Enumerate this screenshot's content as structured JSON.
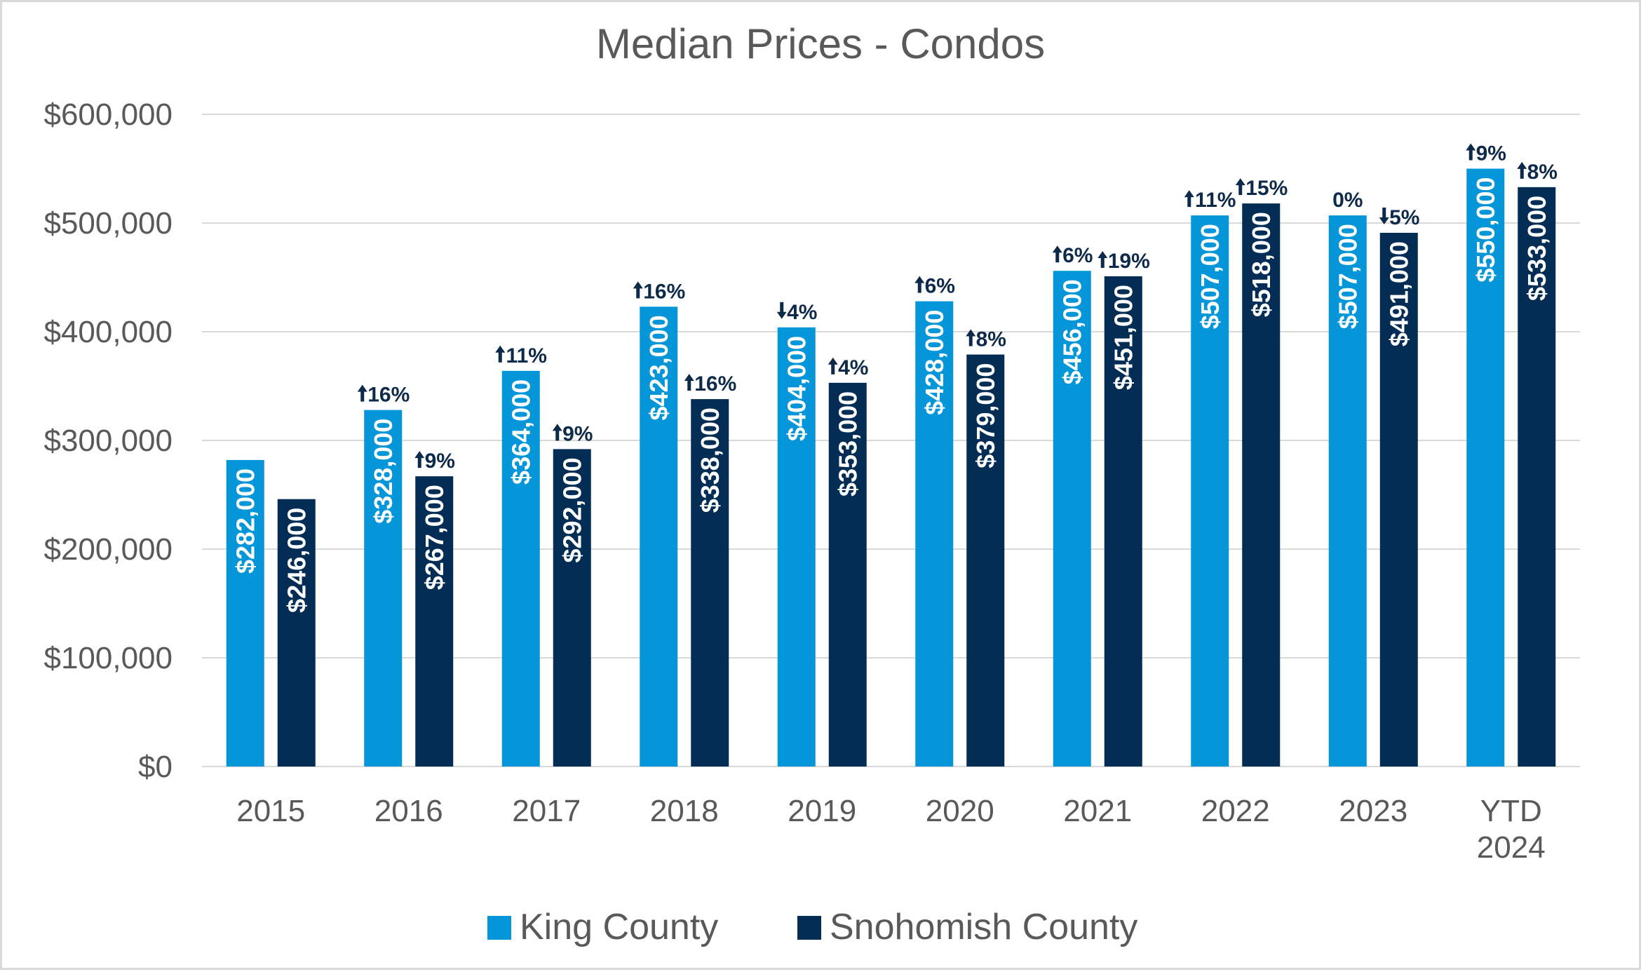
{
  "chart_data": {
    "type": "bar",
    "title": "Median Prices - Condos",
    "categories": [
      "2015",
      "2016",
      "2017",
      "2018",
      "2019",
      "2020",
      "2021",
      "2022",
      "2023",
      "YTD 2024"
    ],
    "ylim": [
      0,
      600000
    ],
    "yticks": [
      0,
      100000,
      200000,
      300000,
      400000,
      500000,
      600000
    ],
    "ytick_labels": [
      "$0",
      "$100,000",
      "$200,000",
      "$300,000",
      "$400,000",
      "$500,000",
      "$600,000"
    ],
    "grid": true,
    "legend_position": "bottom",
    "series": [
      {
        "name": "King County",
        "color": "#0496d8",
        "values": [
          282000,
          328000,
          364000,
          423000,
          404000,
          428000,
          456000,
          507000,
          507000,
          550000
        ],
        "labels": [
          "$282,000",
          "$328,000",
          "$364,000",
          "$423,000",
          "$404,000",
          "$428,000",
          "$456,000",
          "$507,000",
          "$507,000",
          "$550,000"
        ],
        "changes": [
          null,
          "16%",
          "11%",
          "16%",
          "4%",
          "6%",
          "6%",
          "11%",
          "0%",
          "9%"
        ],
        "directions": [
          null,
          "up",
          "up",
          "up",
          "down",
          "up",
          "up",
          "up",
          "none",
          "up"
        ]
      },
      {
        "name": "Snohomish County",
        "color": "#032d54",
        "values": [
          246000,
          267000,
          292000,
          338000,
          353000,
          379000,
          451000,
          518000,
          491000,
          533000
        ],
        "labels": [
          "$246,000",
          "$267,000",
          "$292,000",
          "$338,000",
          "$353,000",
          "$379,000",
          "$451,000",
          "$518,000",
          "$491,000",
          "$533,000"
        ],
        "changes": [
          null,
          "9%",
          "9%",
          "16%",
          "4%",
          "8%",
          "19%",
          "15%",
          "5%",
          "8%"
        ],
        "directions": [
          null,
          "up",
          "up",
          "up",
          "up",
          "up",
          "up",
          "up",
          "down",
          "up"
        ]
      }
    ],
    "change_label_color": "#0d2a4a",
    "gridline_color": "#d9d9d9"
  }
}
